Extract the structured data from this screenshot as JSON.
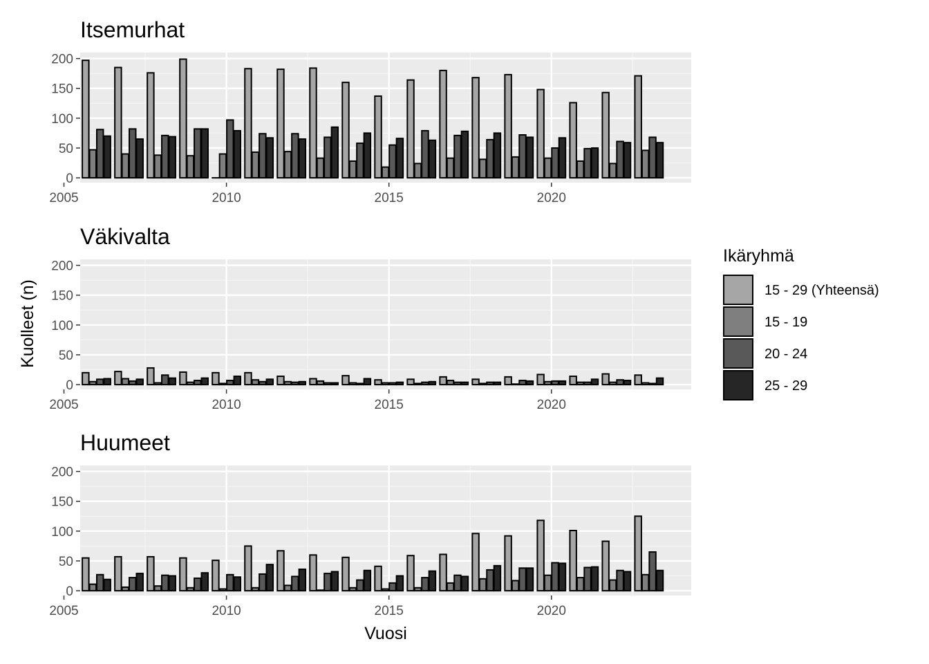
{
  "chart_data": {
    "type": "bar",
    "facet_layout": "vertical",
    "xlabel": "Vuosi",
    "ylabel": "Kuolleet (n)",
    "xlim": [
      2005.5,
      2024.3
    ],
    "ylim": [
      -8,
      210
    ],
    "x_ticks": [
      2005,
      2010,
      2015,
      2020
    ],
    "y_ticks": [
      0,
      50,
      100,
      150,
      200
    ],
    "grid": true,
    "legend": {
      "title": "Ikäryhmä",
      "position": "right",
      "items": [
        {
          "label": "15 - 29 (Yhteensä)",
          "color": "#a6a6a6"
        },
        {
          "label": "15 - 19",
          "color": "#7f7f7f"
        },
        {
          "label": "20 - 24",
          "color": "#595959"
        },
        {
          "label": "25 - 29",
          "color": "#262626"
        }
      ]
    },
    "years": [
      2006,
      2007,
      2008,
      2009,
      2010,
      2011,
      2012,
      2013,
      2014,
      2015,
      2016,
      2017,
      2018,
      2019,
      2020,
      2021,
      2022,
      2023
    ],
    "panels": [
      {
        "title": "Itsemurhat",
        "series": [
          {
            "name": "15 - 29 (Yhteensä)",
            "values": [
              197,
              185,
              176,
              199,
              0,
              183,
              182,
              184,
              160,
              137,
              164,
              180,
              168,
              173,
              148,
              126,
              143,
              171
            ]
          },
          {
            "name": "15 - 19",
            "values": [
              47,
              40,
              38,
              37,
              40,
              43,
              44,
              33,
              28,
              18,
              24,
              33,
              31,
              35,
              33,
              28,
              24,
              46
            ]
          },
          {
            "name": "20 - 24",
            "values": [
              81,
              82,
              71,
              82,
              97,
              74,
              74,
              68,
              58,
              55,
              79,
              71,
              64,
              72,
              50,
              49,
              61,
              68
            ]
          },
          {
            "name": "25 - 29",
            "values": [
              70,
              65,
              69,
              82,
              79,
              67,
              65,
              85,
              75,
              66,
              63,
              78,
              75,
              68,
              67,
              50,
              59,
              59
            ]
          }
        ]
      },
      {
        "title": "Väkivalta",
        "series": [
          {
            "name": "15 - 29 (Yhteensä)",
            "values": [
              20,
              22,
              28,
              21,
              20,
              20,
              14,
              10,
              15,
              8,
              9,
              13,
              9,
              13,
              17,
              14,
              18,
              16
            ]
          },
          {
            "name": "15 - 19",
            "values": [
              5,
              10,
              3,
              4,
              2,
              8,
              5,
              6,
              3,
              3,
              2,
              7,
              2,
              1,
              5,
              4,
              4,
              3
            ]
          },
          {
            "name": "20 - 24",
            "values": [
              9,
              6,
              16,
              7,
              7,
              5,
              4,
              3,
              2,
              3,
              4,
              4,
              4,
              7,
              6,
              4,
              8,
              2
            ]
          },
          {
            "name": "25 - 29",
            "values": [
              10,
              9,
              11,
              11,
              14,
              9,
              5,
              3,
              10,
              4,
              5,
              4,
              4,
              6,
              6,
              9,
              7,
              11
            ]
          }
        ]
      },
      {
        "title": "Huumeet",
        "series": [
          {
            "name": "15 - 29 (Yhteensä)",
            "values": [
              55,
              57,
              57,
              55,
              51,
              75,
              67,
              60,
              56,
              41,
              59,
              61,
              96,
              92,
              118,
              101,
              83,
              125
            ]
          },
          {
            "name": "15 - 19",
            "values": [
              11,
              6,
              8,
              5,
              3,
              5,
              9,
              1,
              5,
              3,
              5,
              13,
              20,
              17,
              26,
              22,
              18,
              27
            ]
          },
          {
            "name": "20 - 24",
            "values": [
              27,
              22,
              26,
              21,
              27,
              28,
              24,
              29,
              18,
              13,
              22,
              26,
              35,
              38,
              47,
              39,
              34,
              65
            ]
          },
          {
            "name": "25 - 29",
            "values": [
              19,
              29,
              25,
              30,
              23,
              44,
              36,
              32,
              34,
              25,
              33,
              24,
              42,
              38,
              46,
              40,
              32,
              34
            ]
          }
        ]
      }
    ]
  }
}
